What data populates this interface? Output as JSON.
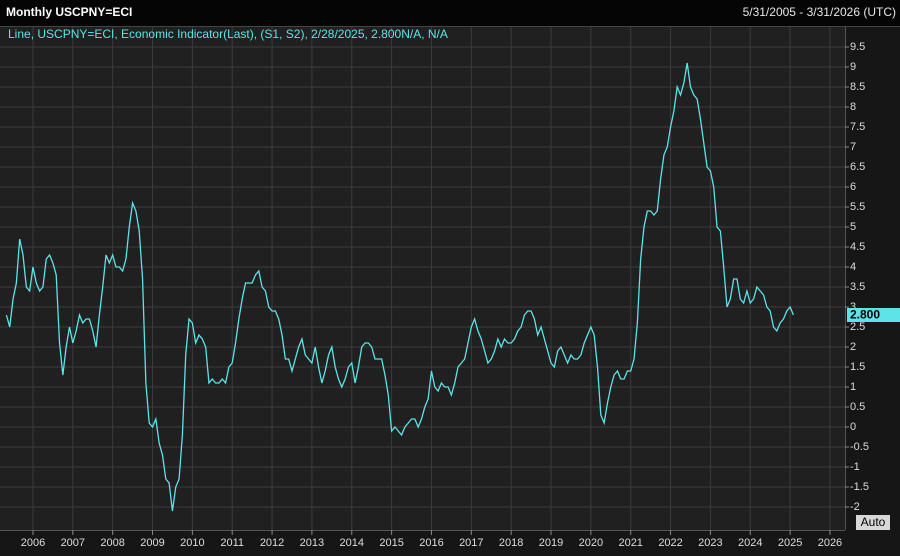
{
  "chart_data": {
    "type": "line",
    "title": "Monthly USCPNY=ECI",
    "date_range": "5/31/2005 - 3/31/2026 (UTC)",
    "legend_text": "Line, USCPNY=ECI, Economic Indicator(Last), (S1, S2), 2/28/2025, 2.800N/A, N/A",
    "last_value_label": "2.800",
    "button": "Auto",
    "color": "#5ee3e8",
    "grid": true,
    "ylim": [
      -2.6,
      10
    ],
    "yticks": [
      -2,
      -1.5,
      -1,
      -0.5,
      0,
      0.5,
      1,
      1.5,
      2,
      2.5,
      3,
      3.5,
      4,
      4.5,
      5,
      5.5,
      6,
      6.5,
      7,
      7.5,
      8,
      8.5,
      9,
      9.5
    ],
    "categories": [
      null,
      null,
      null,
      null,
      null,
      null,
      null,
      null,
      "2006",
      null,
      null,
      null,
      null,
      null,
      null,
      null,
      null,
      null,
      null,
      null,
      "2007",
      null,
      null,
      null,
      null,
      null,
      null,
      null,
      null,
      null,
      null,
      null,
      "2008",
      null,
      null,
      null,
      null,
      null,
      null,
      null,
      null,
      null,
      null,
      null,
      "2009",
      null,
      null,
      null,
      null,
      null,
      null,
      null,
      null,
      null,
      null,
      null,
      "2010",
      null,
      null,
      null,
      null,
      null,
      null,
      null,
      null,
      null,
      null,
      null,
      "2011",
      null,
      null,
      null,
      null,
      null,
      null,
      null,
      null,
      null,
      null,
      null,
      "2012",
      null,
      null,
      null,
      null,
      null,
      null,
      null,
      null,
      null,
      null,
      null,
      "2013",
      null,
      null,
      null,
      null,
      null,
      null,
      null,
      null,
      null,
      null,
      null,
      "2014",
      null,
      null,
      null,
      null,
      null,
      null,
      null,
      null,
      null,
      null,
      null,
      "2015",
      null,
      null,
      null,
      null,
      null,
      null,
      null,
      null,
      null,
      null,
      null,
      "2016",
      null,
      null,
      null,
      null,
      null,
      null,
      null,
      null,
      null,
      null,
      null,
      "2017",
      null,
      null,
      null,
      null,
      null,
      null,
      null,
      null,
      null,
      null,
      null,
      "2018",
      null,
      null,
      null,
      null,
      null,
      null,
      null,
      null,
      null,
      null,
      null,
      "2019",
      null,
      null,
      null,
      null,
      null,
      null,
      null,
      null,
      null,
      null,
      null,
      "2020",
      null,
      null,
      null,
      null,
      null,
      null,
      null,
      null,
      null,
      null,
      null,
      "2021",
      null,
      null,
      null,
      null,
      null,
      null,
      null,
      null,
      null,
      null,
      null,
      "2022",
      null,
      null,
      null,
      null,
      null,
      null,
      null,
      null,
      null,
      null,
      null,
      "2023",
      null,
      null,
      null,
      null,
      null,
      null,
      null,
      null,
      null,
      null,
      null,
      "2024",
      null,
      null,
      null,
      null,
      null,
      null,
      null,
      null,
      null,
      null,
      null,
      "2025",
      null,
      null,
      null,
      null,
      null,
      null,
      null,
      null,
      null,
      null,
      null,
      "2026",
      null,
      null
    ],
    "values": [
      2.8,
      2.5,
      3.2,
      3.6,
      4.7,
      4.3,
      3.5,
      3.4,
      4.0,
      3.6,
      3.4,
      3.5,
      4.2,
      4.3,
      4.1,
      3.8,
      2.1,
      1.3,
      2.0,
      2.5,
      2.1,
      2.4,
      2.8,
      2.6,
      2.7,
      2.7,
      2.4,
      2.0,
      2.8,
      3.5,
      4.3,
      4.1,
      4.3,
      4.0,
      4.0,
      3.9,
      4.2,
      5.0,
      5.6,
      5.4,
      4.9,
      3.7,
      1.1,
      0.1,
      0.0,
      0.2,
      -0.4,
      -0.7,
      -1.3,
      -1.4,
      -2.1,
      -1.5,
      -1.3,
      -0.2,
      1.8,
      2.7,
      2.6,
      2.1,
      2.3,
      2.2,
      2.0,
      1.1,
      1.2,
      1.1,
      1.1,
      1.2,
      1.1,
      1.5,
      1.6,
      2.1,
      2.7,
      3.2,
      3.6,
      3.6,
      3.6,
      3.8,
      3.9,
      3.5,
      3.4,
      3.0,
      2.9,
      2.9,
      2.7,
      2.3,
      1.7,
      1.7,
      1.4,
      1.7,
      2.0,
      2.2,
      1.8,
      1.7,
      1.6,
      2.0,
      1.5,
      1.1,
      1.4,
      1.8,
      2.0,
      1.5,
      1.2,
      1.0,
      1.2,
      1.5,
      1.6,
      1.1,
      1.5,
      2.0,
      2.1,
      2.1,
      2.0,
      1.7,
      1.7,
      1.7,
      1.3,
      0.8,
      -0.1,
      0.0,
      -0.1,
      -0.2,
      0.0,
      0.1,
      0.2,
      0.2,
      0.0,
      0.2,
      0.5,
      0.7,
      1.4,
      1.0,
      0.9,
      1.1,
      1.0,
      1.0,
      0.8,
      1.1,
      1.5,
      1.6,
      1.7,
      2.1,
      2.5,
      2.7,
      2.4,
      2.2,
      1.9,
      1.6,
      1.7,
      1.9,
      2.2,
      2.0,
      2.2,
      2.1,
      2.1,
      2.2,
      2.4,
      2.5,
      2.8,
      2.9,
      2.9,
      2.7,
      2.3,
      2.5,
      2.2,
      1.9,
      1.6,
      1.5,
      1.9,
      2.0,
      1.8,
      1.6,
      1.8,
      1.7,
      1.7,
      1.8,
      2.1,
      2.3,
      2.5,
      2.3,
      1.5,
      0.3,
      0.1,
      0.6,
      1.0,
      1.3,
      1.4,
      1.2,
      1.2,
      1.4,
      1.4,
      1.7,
      2.6,
      4.2,
      5.0,
      5.4,
      5.4,
      5.3,
      5.4,
      6.2,
      6.8,
      7.0,
      7.5,
      7.9,
      8.5,
      8.3,
      8.6,
      9.1,
      8.5,
      8.3,
      8.2,
      7.7,
      7.1,
      6.5,
      6.4,
      6.0,
      5.0,
      4.9,
      4.0,
      3.0,
      3.2,
      3.7,
      3.7,
      3.2,
      3.1,
      3.4,
      3.1,
      3.2,
      3.5,
      3.4,
      3.3,
      3.0,
      2.9,
      2.5,
      2.4,
      2.6,
      2.7,
      2.9,
      3.0,
      2.8,
      null,
      null,
      null,
      null,
      null,
      null,
      null,
      null,
      null,
      null,
      null,
      null,
      null
    ]
  }
}
